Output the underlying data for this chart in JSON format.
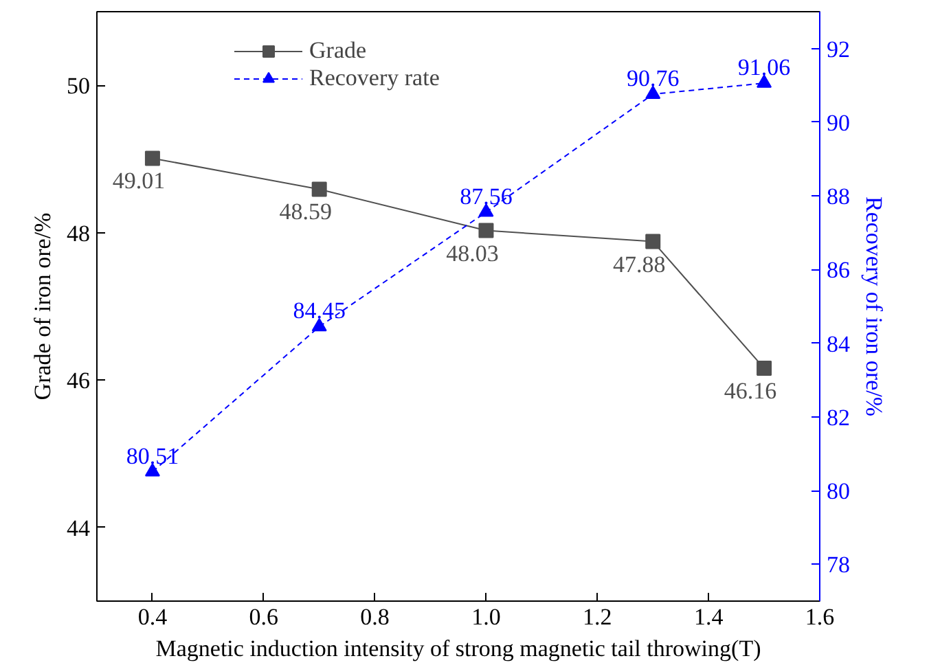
{
  "chart_data": {
    "type": "line",
    "xlabel": "Magnetic induction intensity of strong magnetic tail throwing(T)",
    "ylabel": "Grade of iron ore/%",
    "y2label": "Recovery of iron ore/%",
    "x": [
      0.4,
      0.7,
      1.0,
      1.3,
      1.5
    ],
    "series": [
      {
        "name": "Grade",
        "color": "#505050",
        "values": [
          49.01,
          48.59,
          48.03,
          47.88,
          46.16
        ],
        "marker": "square",
        "line_style": "solid"
      },
      {
        "name": "Recovery rate",
        "color": "#0000ff",
        "values": [
          80.51,
          84.45,
          87.56,
          90.76,
          91.06
        ],
        "marker": "triangle",
        "line_style": "dashed",
        "axis": "y2"
      }
    ],
    "xlim": [
      0.3,
      1.6
    ],
    "xticks": [
      0.4,
      0.6,
      0.8,
      {
        "value": 1.0,
        "label": "1.0"
      },
      1.2,
      1.4,
      1.6
    ],
    "ylim": [
      43,
      51
    ],
    "yticks": [
      44,
      46,
      48,
      50
    ],
    "y2lim": [
      77,
      93
    ],
    "y2ticks": [
      78,
      80,
      82,
      84,
      86,
      88,
      90,
      92
    ],
    "data_labels": true,
    "legend": "top",
    "grid": false
  }
}
